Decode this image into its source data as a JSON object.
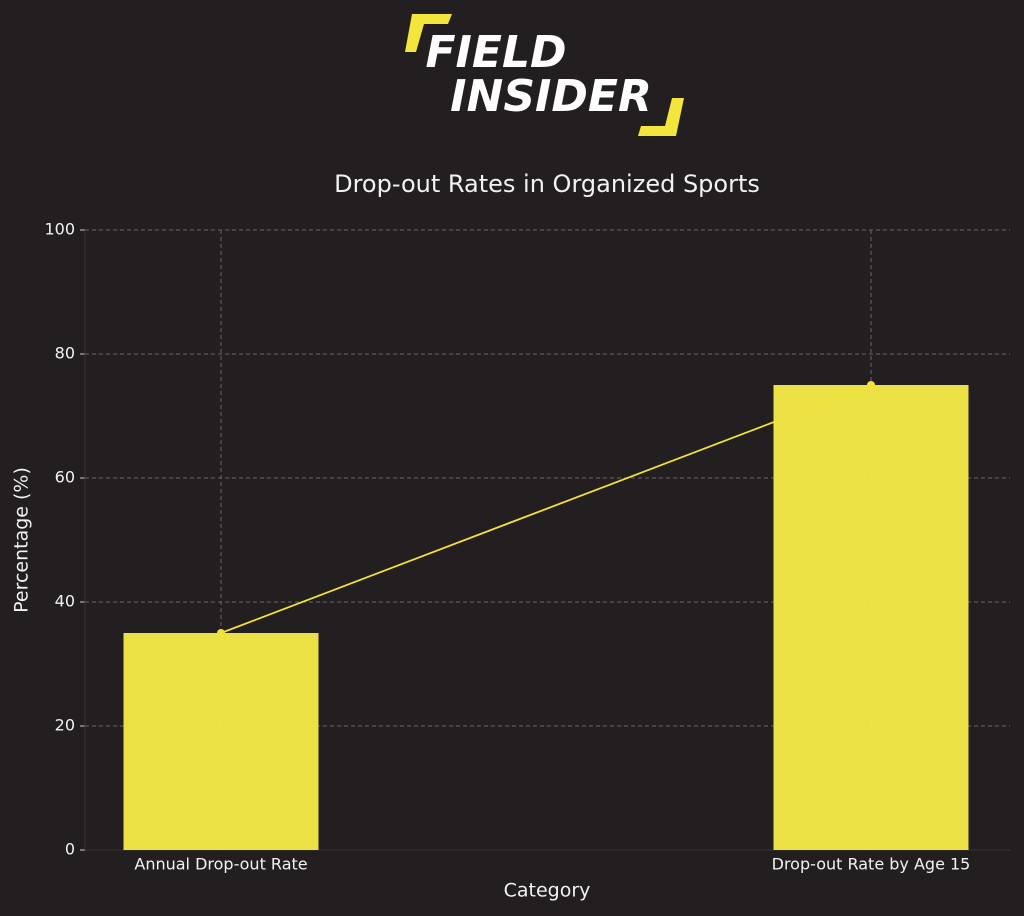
{
  "logo": {
    "line1": "FIELD",
    "line2": "INSIDER"
  },
  "chart_data": {
    "type": "bar",
    "title": "Drop-out Rates in Organized Sports",
    "x_label": "Category",
    "y_label": "Percentage (%)",
    "categories": [
      "Annual Drop-out Rate",
      "Drop-out Rate by Age 15"
    ],
    "values": [
      35,
      75
    ],
    "color": "#f7ec48",
    "overlay_line": true,
    "line_color": "#f2e13a",
    "ylim": [
      0,
      100
    ],
    "yticks": [
      0,
      20,
      40,
      60,
      80,
      100
    ],
    "grid": true
  }
}
